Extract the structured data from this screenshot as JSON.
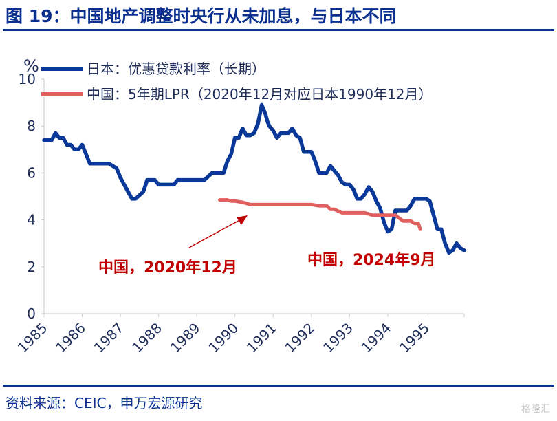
{
  "header": {
    "title": "图 19：中国地产调整时央行从未加息，与日本不同"
  },
  "footer": {
    "source": "资料来源：CEIC，申万宏源研究",
    "watermark": "格隆汇"
  },
  "colors": {
    "japan": "#0a3899",
    "china": "#e06060",
    "annotation": "#c00000",
    "text": "#1f2d5a",
    "title": "#0a2f8f"
  },
  "chart_data": {
    "type": "line",
    "title": "",
    "ylabel": "%",
    "ylim": [
      0,
      10
    ],
    "yticks": [
      0,
      2,
      4,
      6,
      8,
      10
    ],
    "xlim": [
      1985,
      1996
    ],
    "xticks": [
      "1985",
      "1986",
      "1987",
      "1988",
      "1989",
      "1990",
      "1991",
      "1992",
      "1993",
      "1994",
      "1995"
    ],
    "grid": false,
    "legend_position": "top-left",
    "series": [
      {
        "name": "日本：优惠贷款利率（长期）",
        "color": "#0a3899",
        "x": [
          1985.0,
          1985.2,
          1985.3,
          1985.4,
          1985.5,
          1985.6,
          1985.7,
          1985.8,
          1985.9,
          1986.0,
          1986.2,
          1986.3,
          1986.4,
          1986.5,
          1986.7,
          1986.9,
          1987.0,
          1987.2,
          1987.3,
          1987.4,
          1987.6,
          1987.7,
          1987.9,
          1988.0,
          1988.2,
          1988.4,
          1988.5,
          1988.7,
          1988.9,
          1989.0,
          1989.2,
          1989.4,
          1989.6,
          1989.7,
          1989.8,
          1989.9,
          1990.0,
          1990.1,
          1990.2,
          1990.3,
          1990.4,
          1990.5,
          1990.6,
          1990.7,
          1990.8,
          1990.85,
          1990.9,
          1991.0,
          1991.1,
          1991.2,
          1991.3,
          1991.4,
          1991.5,
          1991.6,
          1991.7,
          1991.8,
          1991.9,
          1992.0,
          1992.1,
          1992.2,
          1992.3,
          1992.4,
          1992.5,
          1992.6,
          1992.7,
          1992.8,
          1992.9,
          1993.0,
          1993.1,
          1993.2,
          1993.3,
          1993.4,
          1993.5,
          1993.6,
          1993.7,
          1993.8,
          1993.9,
          1994.0,
          1994.1,
          1994.2,
          1994.3,
          1994.4,
          1994.5,
          1994.6,
          1994.7,
          1994.8,
          1994.9,
          1995.0,
          1995.1,
          1995.2,
          1995.3,
          1995.4,
          1995.5,
          1995.6,
          1995.7,
          1995.8,
          1995.9,
          1996.0
        ],
        "values": [
          7.4,
          7.4,
          7.7,
          7.5,
          7.5,
          7.2,
          7.2,
          7.0,
          7.0,
          7.2,
          6.4,
          6.4,
          6.4,
          6.4,
          6.4,
          6.2,
          5.8,
          5.2,
          4.9,
          4.9,
          5.2,
          5.7,
          5.7,
          5.5,
          5.5,
          5.5,
          5.7,
          5.7,
          5.7,
          5.7,
          5.7,
          6.0,
          6.0,
          6.0,
          6.5,
          6.8,
          7.5,
          7.5,
          7.9,
          7.6,
          7.6,
          7.7,
          8.1,
          8.9,
          8.5,
          8.2,
          8.0,
          7.8,
          7.5,
          7.7,
          7.7,
          7.7,
          7.9,
          7.6,
          7.5,
          6.9,
          6.9,
          6.9,
          6.5,
          6.0,
          6.0,
          6.0,
          6.3,
          6.1,
          5.9,
          5.6,
          5.5,
          5.5,
          5.3,
          4.9,
          4.9,
          5.1,
          5.4,
          5.2,
          4.8,
          4.5,
          3.9,
          3.5,
          3.6,
          4.4,
          4.4,
          4.4,
          4.4,
          4.6,
          4.9,
          4.9,
          4.9,
          4.9,
          4.8,
          4.2,
          3.6,
          3.6,
          3.0,
          2.6,
          2.7,
          3.0,
          2.8,
          2.7
        ]
      },
      {
        "name": "中国：5年期LPR（2020年12月对应日本1990年12月）",
        "color": "#e06060",
        "x": [
          1989.6,
          1989.8,
          1989.9,
          1990.0,
          1990.2,
          1990.4,
          1990.6,
          1990.8,
          1991.0,
          1991.2,
          1991.4,
          1991.6,
          1991.8,
          1992.0,
          1992.2,
          1992.4,
          1992.5,
          1992.6,
          1992.8,
          1993.0,
          1993.2,
          1993.4,
          1993.6,
          1993.8,
          1994.0,
          1994.2,
          1994.4,
          1994.6,
          1994.7,
          1994.8,
          1994.85
        ],
        "values": [
          4.85,
          4.85,
          4.8,
          4.8,
          4.75,
          4.65,
          4.65,
          4.65,
          4.65,
          4.65,
          4.65,
          4.65,
          4.65,
          4.65,
          4.6,
          4.6,
          4.45,
          4.45,
          4.3,
          4.3,
          4.3,
          4.3,
          4.2,
          4.2,
          4.2,
          4.2,
          3.95,
          3.95,
          3.85,
          3.85,
          3.6
        ]
      }
    ],
    "annotations": [
      {
        "text": "中国，2020年12月"
      },
      {
        "text": "中国，2024年9月"
      }
    ]
  }
}
